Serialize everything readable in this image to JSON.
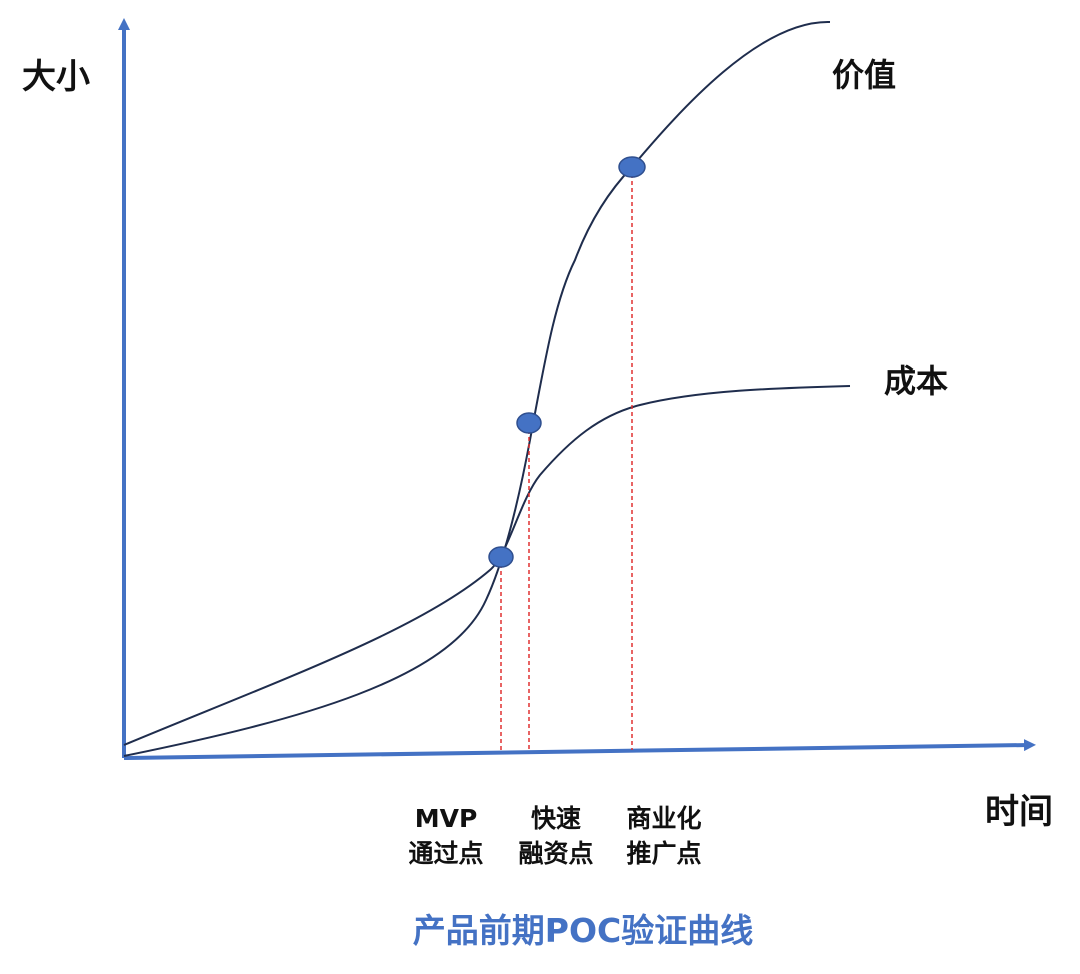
{
  "axes": {
    "y_label": "大小",
    "x_label": "时间"
  },
  "curves": {
    "value_label": "价值",
    "cost_label": "成本"
  },
  "milestones": [
    {
      "line1": "MVP",
      "line2": "通过点"
    },
    {
      "line1": "快速",
      "line2": "融资点"
    },
    {
      "line1": "商业化",
      "line2": "推广点"
    }
  ],
  "title": "产品前期POC验证曲线",
  "colors": {
    "axis": "#4472C4",
    "curve": "#1F2D4D",
    "marker_fill": "#4472C4",
    "marker_stroke": "#2F4F8F",
    "guide": "#E03030",
    "title": "#4472C4"
  }
}
